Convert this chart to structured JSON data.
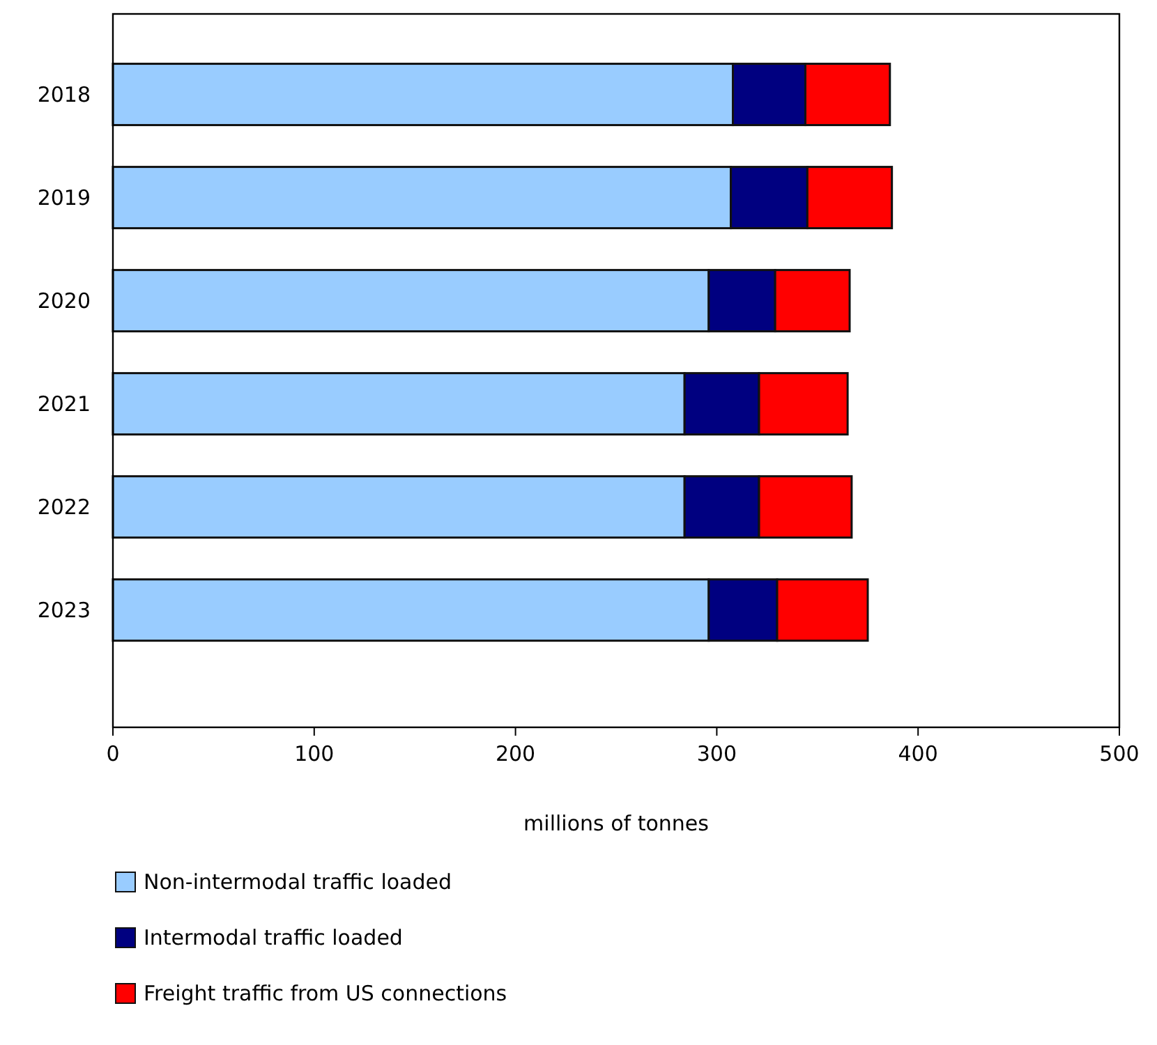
{
  "chart_data": {
    "type": "bar",
    "orientation": "horizontal",
    "stacked": true,
    "xlabel": "millions of tonnes",
    "categories": [
      "2018",
      "2019",
      "2020",
      "2021",
      "2022",
      "2023"
    ],
    "series": [
      {
        "name": "Non-intermodal traffic loaded",
        "color": "#99ccff",
        "values": [
          308,
          307,
          296,
          284,
          284,
          296
        ]
      },
      {
        "name": "Intermodal traffic loaded",
        "color": "#000080",
        "values": [
          36,
          38,
          33,
          37,
          37,
          34
        ]
      },
      {
        "name": "Freight traffic from US connections",
        "color": "#ff0000",
        "values": [
          42,
          42,
          37,
          44,
          46,
          45
        ]
      }
    ],
    "xlim": [
      0,
      500
    ],
    "xticks": [
      0,
      100,
      200,
      300,
      400,
      500
    ],
    "grid": false,
    "legend": "bottom"
  }
}
